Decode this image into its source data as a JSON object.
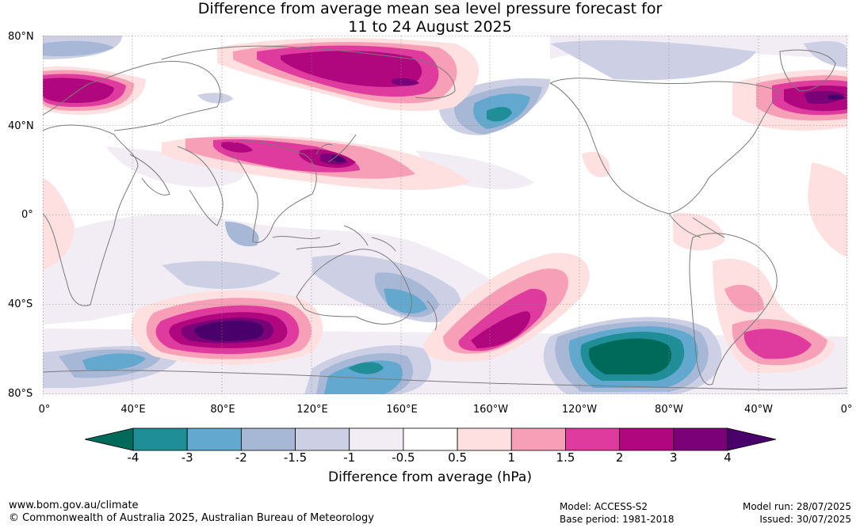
{
  "title": {
    "line1": "Difference from average mean sea level pressure forecast for",
    "line2": "11 to 24 August 2025"
  },
  "map": {
    "lat_labels": [
      "80°N",
      "40°N",
      "0°",
      "40°S",
      "80°S"
    ],
    "lon_labels": [
      "0°",
      "40°E",
      "80°E",
      "120°E",
      "160°E",
      "160°W",
      "120°W",
      "80°W",
      "40°W",
      "0°"
    ]
  },
  "colorbar": {
    "title": "Difference from average (hPa)",
    "ticks": [
      "-4",
      "-3",
      "-2",
      "-1.5",
      "-1",
      "-0.5",
      "0.5",
      "1",
      "1.5",
      "2",
      "3",
      "4"
    ],
    "colors": {
      "lt_-4": "#006a5a",
      "-4_-3": "#1f8e96",
      "-3_-2": "#62a8cf",
      "-2_-1.5": "#a6b8d6",
      "-1.5_-1": "#cdd0e5",
      "-1_-0.5": "#f2edf5",
      "-0.5_0.5": "#ffffff",
      "0.5_1": "#fde0df",
      "1_1.5": "#f79fb6",
      "1.5_2": "#df3a9e",
      "2_3": "#b0077f",
      "3_4": "#7a0177",
      "gt_4": "#49006a"
    }
  },
  "footer": {
    "website": "www.bom.gov.au/climate",
    "copyright": "© Commonwealth of Australia 2025, Australian Bureau of Meteorology",
    "model": "Model: ACCESS-S2",
    "base_period": "Base period: 1981-2018",
    "model_run": "Model run: 28/07/2025",
    "issued": "Issued: 30/07/2025"
  }
}
